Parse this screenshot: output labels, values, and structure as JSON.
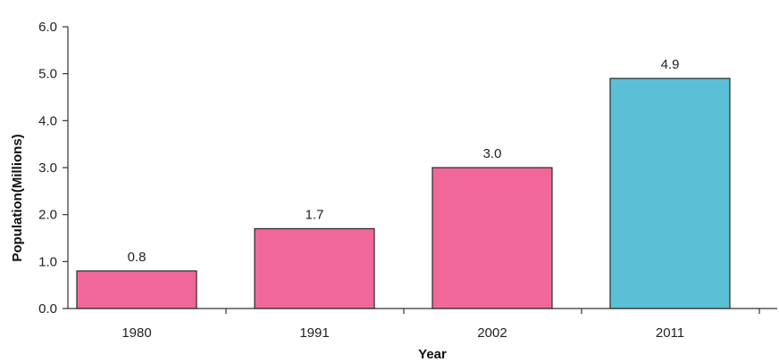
{
  "chart_data": {
    "type": "bar",
    "title": "",
    "xlabel": "Year",
    "ylabel": "Population(Millions)",
    "categories": [
      "1980",
      "1991",
      "2002",
      "2011"
    ],
    "values": [
      0.8,
      1.7,
      3.0,
      4.9
    ],
    "data_labels": [
      "0.8",
      "1.7",
      "3.0",
      "4.9"
    ],
    "bar_colors": [
      "#f2679a",
      "#f2679a",
      "#f2679a",
      "#5bc0d6"
    ],
    "ylim": [
      0,
      6
    ],
    "yticks": [
      0,
      1,
      2,
      3,
      4,
      5,
      6
    ],
    "ytick_labels": [
      "0.0",
      "1.0",
      "2.0",
      "3.0",
      "4.0",
      "5.0",
      "6.0"
    ],
    "grid": false,
    "legend": "none"
  }
}
